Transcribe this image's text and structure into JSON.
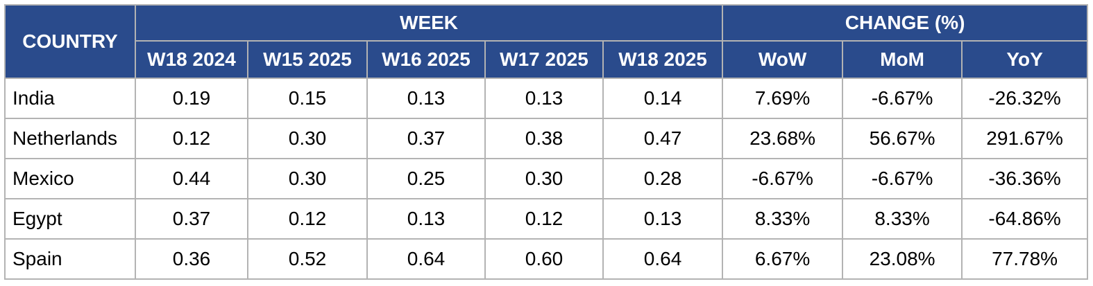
{
  "colors": {
    "header_bg": "#2a4b8c",
    "header_text": "#ffffff",
    "grid": "#b3b3b3",
    "body_text": "#000000",
    "page_bg": "#ffffff"
  },
  "table": {
    "corner_header": "COUNTRY",
    "group_headers": {
      "week": "WEEK",
      "change": "CHANGE (%)"
    },
    "week_columns": [
      "W18 2024",
      "W15 2025",
      "W16 2025",
      "W17 2025",
      "W18 2025"
    ],
    "change_columns": [
      "WoW",
      "MoM",
      "YoY"
    ],
    "rows": [
      {
        "country": "India",
        "weeks": [
          "0.19",
          "0.15",
          "0.13",
          "0.13",
          "0.14"
        ],
        "changes": [
          "7.69%",
          "-6.67%",
          "-26.32%"
        ]
      },
      {
        "country": "Netherlands",
        "weeks": [
          "0.12",
          "0.30",
          "0.37",
          "0.38",
          "0.47"
        ],
        "changes": [
          "23.68%",
          "56.67%",
          "291.67%"
        ]
      },
      {
        "country": "Mexico",
        "weeks": [
          "0.44",
          "0.30",
          "0.25",
          "0.30",
          "0.28"
        ],
        "changes": [
          "-6.67%",
          "-6.67%",
          "-36.36%"
        ]
      },
      {
        "country": "Egypt",
        "weeks": [
          "0.37",
          "0.12",
          "0.13",
          "0.12",
          "0.13"
        ],
        "changes": [
          "8.33%",
          "8.33%",
          "-64.86%"
        ]
      },
      {
        "country": "Spain",
        "weeks": [
          "0.36",
          "0.52",
          "0.64",
          "0.60",
          "0.64"
        ],
        "changes": [
          "6.67%",
          "23.08%",
          "77.78%"
        ]
      }
    ]
  },
  "chart_data": {
    "type": "table",
    "title": "",
    "columns": [
      "COUNTRY",
      "W18 2024",
      "W15 2025",
      "W16 2025",
      "W17 2025",
      "W18 2025",
      "WoW",
      "MoM",
      "YoY"
    ],
    "column_groups": [
      {
        "label": "WEEK",
        "columns": [
          "W18 2024",
          "W15 2025",
          "W16 2025",
          "W17 2025",
          "W18 2025"
        ]
      },
      {
        "label": "CHANGE (%)",
        "columns": [
          "WoW",
          "MoM",
          "YoY"
        ]
      }
    ],
    "rows": [
      [
        "India",
        0.19,
        0.15,
        0.13,
        0.13,
        0.14,
        "7.69%",
        "-6.67%",
        "-26.32%"
      ],
      [
        "Netherlands",
        0.12,
        0.3,
        0.37,
        0.38,
        0.47,
        "23.68%",
        "56.67%",
        "291.67%"
      ],
      [
        "Mexico",
        0.44,
        0.3,
        0.25,
        0.3,
        0.28,
        "-6.67%",
        "-6.67%",
        "-36.36%"
      ],
      [
        "Egypt",
        0.37,
        0.12,
        0.13,
        0.12,
        0.13,
        "8.33%",
        "8.33%",
        "-64.86%"
      ],
      [
        "Spain",
        0.36,
        0.52,
        0.64,
        0.6,
        0.64,
        "6.67%",
        "23.08%",
        "77.78%"
      ]
    ]
  }
}
